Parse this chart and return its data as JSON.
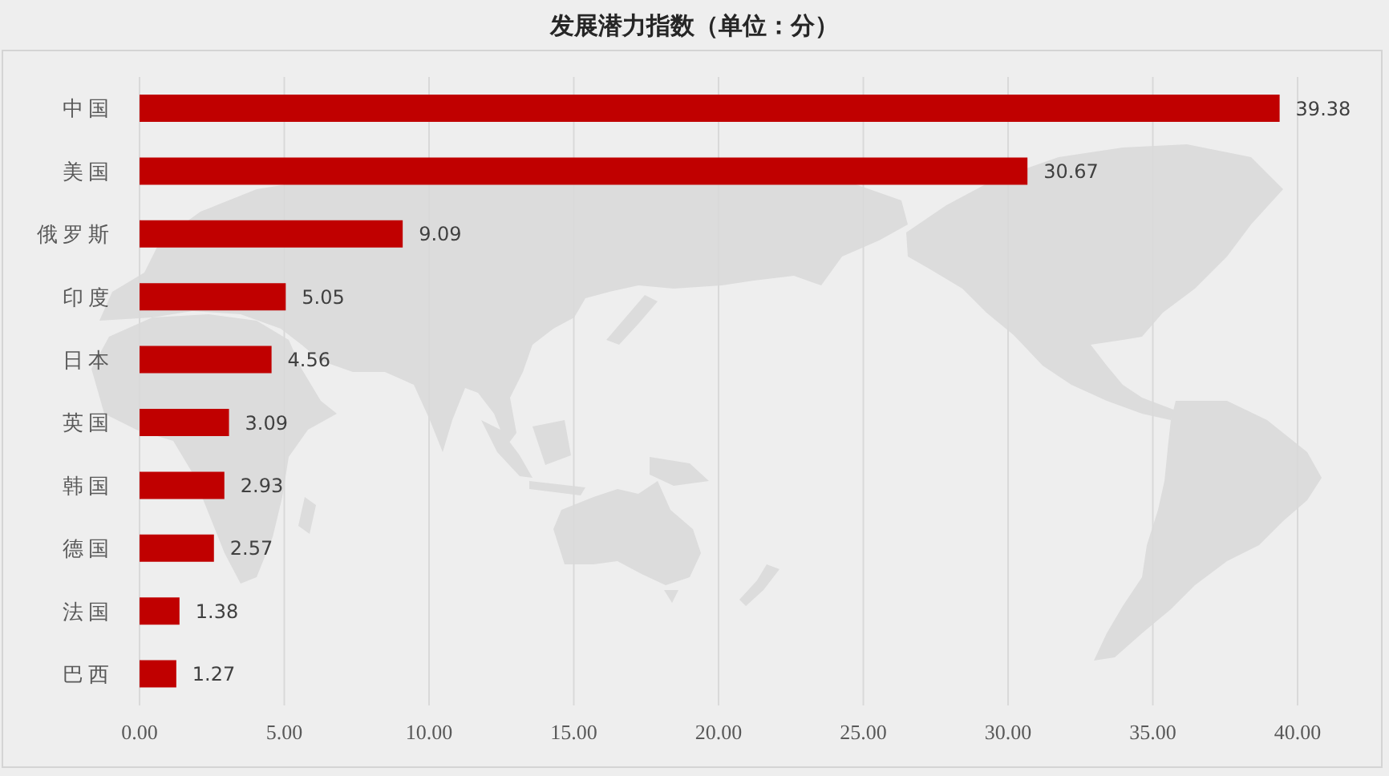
{
  "chart_data": {
    "type": "bar",
    "orientation": "horizontal",
    "title": "发展潜力指数（单位：分）",
    "categories": [
      "中国",
      "美国",
      "俄罗斯",
      "印度",
      "日本",
      "英国",
      "韩国",
      "德国",
      "法国",
      "巴西"
    ],
    "values": [
      39.38,
      30.67,
      9.09,
      5.05,
      4.56,
      3.09,
      2.93,
      2.57,
      1.38,
      1.27
    ],
    "color": "#c00000",
    "xlim": [
      0,
      40
    ],
    "xticks": [
      {
        "value": 0,
        "label": "0.00"
      },
      {
        "value": 5,
        "label": "5.00"
      },
      {
        "value": 10,
        "label": "10.00"
      },
      {
        "value": 15,
        "label": "15.00"
      },
      {
        "value": 20,
        "label": "20.00"
      },
      {
        "value": 25,
        "label": "25.00"
      },
      {
        "value": 30,
        "label": "30.00"
      },
      {
        "value": 35,
        "label": "35.00"
      },
      {
        "value": 40,
        "label": "40.00"
      }
    ],
    "grid": "x",
    "data_labels": true
  }
}
